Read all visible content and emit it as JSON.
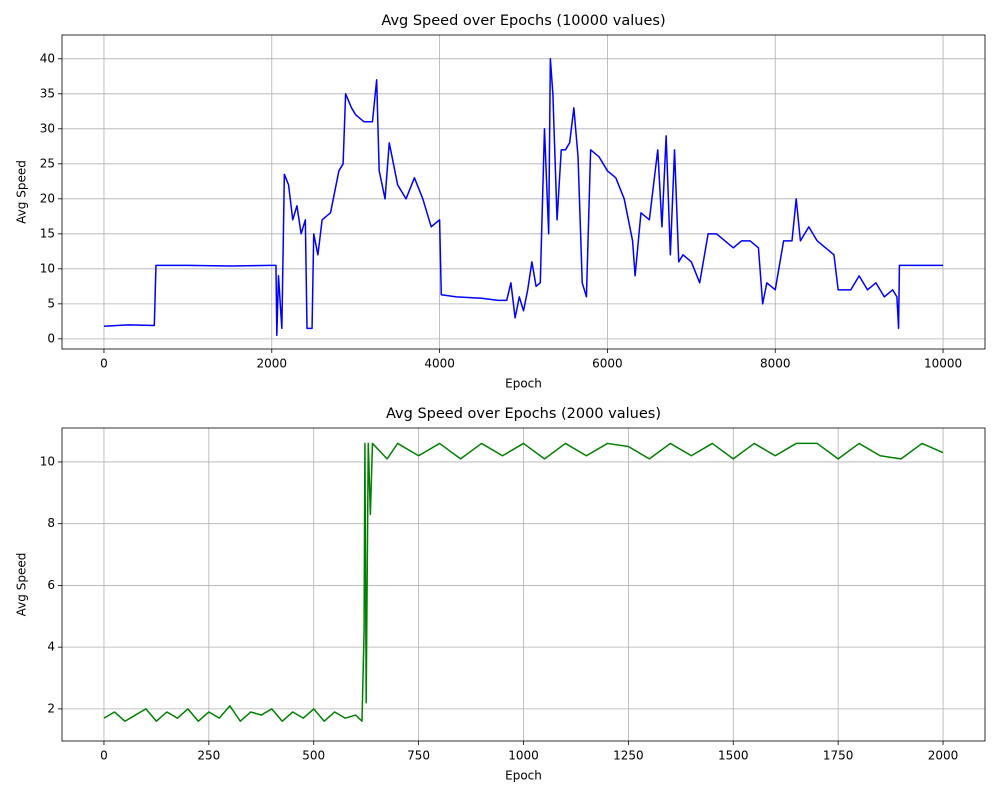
{
  "chart_data": [
    {
      "type": "line",
      "title": "Avg Speed over Epochs (10000 values)",
      "xlabel": "Epoch",
      "ylabel": "Avg Speed",
      "grid": true,
      "xlim": [
        -500,
        10500
      ],
      "ylim": [
        -1.45,
        43.4
      ],
      "xticks": [
        0,
        2000,
        4000,
        6000,
        8000,
        10000
      ],
      "yticks": [
        0,
        5,
        10,
        15,
        20,
        25,
        30,
        35,
        40
      ],
      "x": [
        0,
        300,
        600,
        620,
        1000,
        1500,
        2000,
        2050,
        2060,
        2080,
        2120,
        2150,
        2200,
        2250,
        2300,
        2350,
        2400,
        2420,
        2480,
        2500,
        2550,
        2600,
        2700,
        2800,
        2850,
        2880,
        2950,
        3000,
        3100,
        3200,
        3250,
        3280,
        3350,
        3400,
        3500,
        3600,
        3700,
        3800,
        3900,
        4000,
        4020,
        4200,
        4500,
        4700,
        4800,
        4850,
        4900,
        4950,
        5000,
        5050,
        5100,
        5150,
        5200,
        5250,
        5300,
        5320,
        5350,
        5400,
        5450,
        5500,
        5550,
        5600,
        5650,
        5700,
        5750,
        5800,
        5900,
        6000,
        6100,
        6200,
        6300,
        6330,
        6400,
        6500,
        6600,
        6650,
        6700,
        6750,
        6800,
        6850,
        6900,
        7000,
        7100,
        7200,
        7300,
        7400,
        7500,
        7600,
        7700,
        7800,
        7850,
        7900,
        8000,
        8100,
        8200,
        8250,
        8300,
        8400,
        8500,
        8600,
        8700,
        8750,
        8900,
        9000,
        9100,
        9200,
        9300,
        9400,
        9450,
        9470,
        9480,
        9600,
        9800,
        10000
      ],
      "series": [
        {
          "name": "Avg Speed",
          "color": "#0000ff",
          "values": [
            1.8,
            2.0,
            1.9,
            10.5,
            10.5,
            10.4,
            10.5,
            10.5,
            0.5,
            9,
            1.5,
            23.5,
            22,
            17,
            19,
            15,
            17,
            1.5,
            1.5,
            15,
            12,
            17,
            18,
            24,
            25,
            35,
            33,
            32,
            31,
            31,
            37,
            24,
            20,
            28,
            22,
            20,
            23,
            20,
            16,
            17,
            6.3,
            6,
            5.8,
            5.5,
            5.5,
            8,
            3,
            6,
            4,
            7,
            11,
            7.5,
            8,
            30,
            15,
            40,
            35,
            17,
            27,
            27,
            28,
            33,
            26,
            8,
            6,
            27,
            26,
            24,
            23,
            20,
            14,
            9,
            18,
            17,
            27,
            16,
            29,
            12,
            27,
            11,
            12,
            11,
            8,
            15,
            15,
            14,
            13,
            14,
            14,
            13,
            5,
            8,
            7,
            14,
            14,
            20,
            14,
            16,
            14,
            13,
            12,
            7,
            7,
            9,
            7,
            8,
            6,
            7,
            6,
            1.5,
            10.5,
            10.5,
            10.5,
            10.5
          ]
        }
      ]
    },
    {
      "type": "line",
      "title": "Avg Speed over Epochs (2000 values)",
      "xlabel": "Epoch",
      "ylabel": "Avg Speed",
      "grid": true,
      "xlim": [
        -100,
        2100
      ],
      "ylim": [
        0.96,
        11.1
      ],
      "xticks": [
        0,
        250,
        500,
        750,
        1000,
        1250,
        1500,
        1750,
        2000
      ],
      "yticks": [
        2,
        4,
        6,
        8,
        10
      ],
      "x": [
        0,
        25,
        50,
        75,
        100,
        125,
        150,
        175,
        200,
        225,
        250,
        275,
        300,
        325,
        350,
        375,
        400,
        425,
        450,
        475,
        500,
        525,
        550,
        575,
        600,
        615,
        620,
        622,
        625,
        630,
        635,
        640,
        675,
        700,
        750,
        800,
        850,
        900,
        950,
        1000,
        1050,
        1100,
        1150,
        1200,
        1250,
        1300,
        1350,
        1400,
        1450,
        1500,
        1550,
        1600,
        1650,
        1700,
        1750,
        1800,
        1850,
        1900,
        1950,
        2000
      ],
      "series": [
        {
          "name": "Avg Speed",
          "color": "#008000",
          "values": [
            1.7,
            1.9,
            1.6,
            1.8,
            2.0,
            1.6,
            1.9,
            1.7,
            2.0,
            1.6,
            1.9,
            1.7,
            2.1,
            1.6,
            1.9,
            1.8,
            2.0,
            1.6,
            1.9,
            1.7,
            2.0,
            1.6,
            1.9,
            1.7,
            1.8,
            1.6,
            4.5,
            10.6,
            2.2,
            10.6,
            8.3,
            10.6,
            10.1,
            10.6,
            10.2,
            10.6,
            10.1,
            10.6,
            10.2,
            10.6,
            10.1,
            10.6,
            10.2,
            10.6,
            10.5,
            10.1,
            10.6,
            10.2,
            10.6,
            10.1,
            10.6,
            10.2,
            10.6,
            10.6,
            10.1,
            10.6,
            10.2,
            10.1,
            10.6,
            10.3
          ]
        }
      ]
    }
  ]
}
